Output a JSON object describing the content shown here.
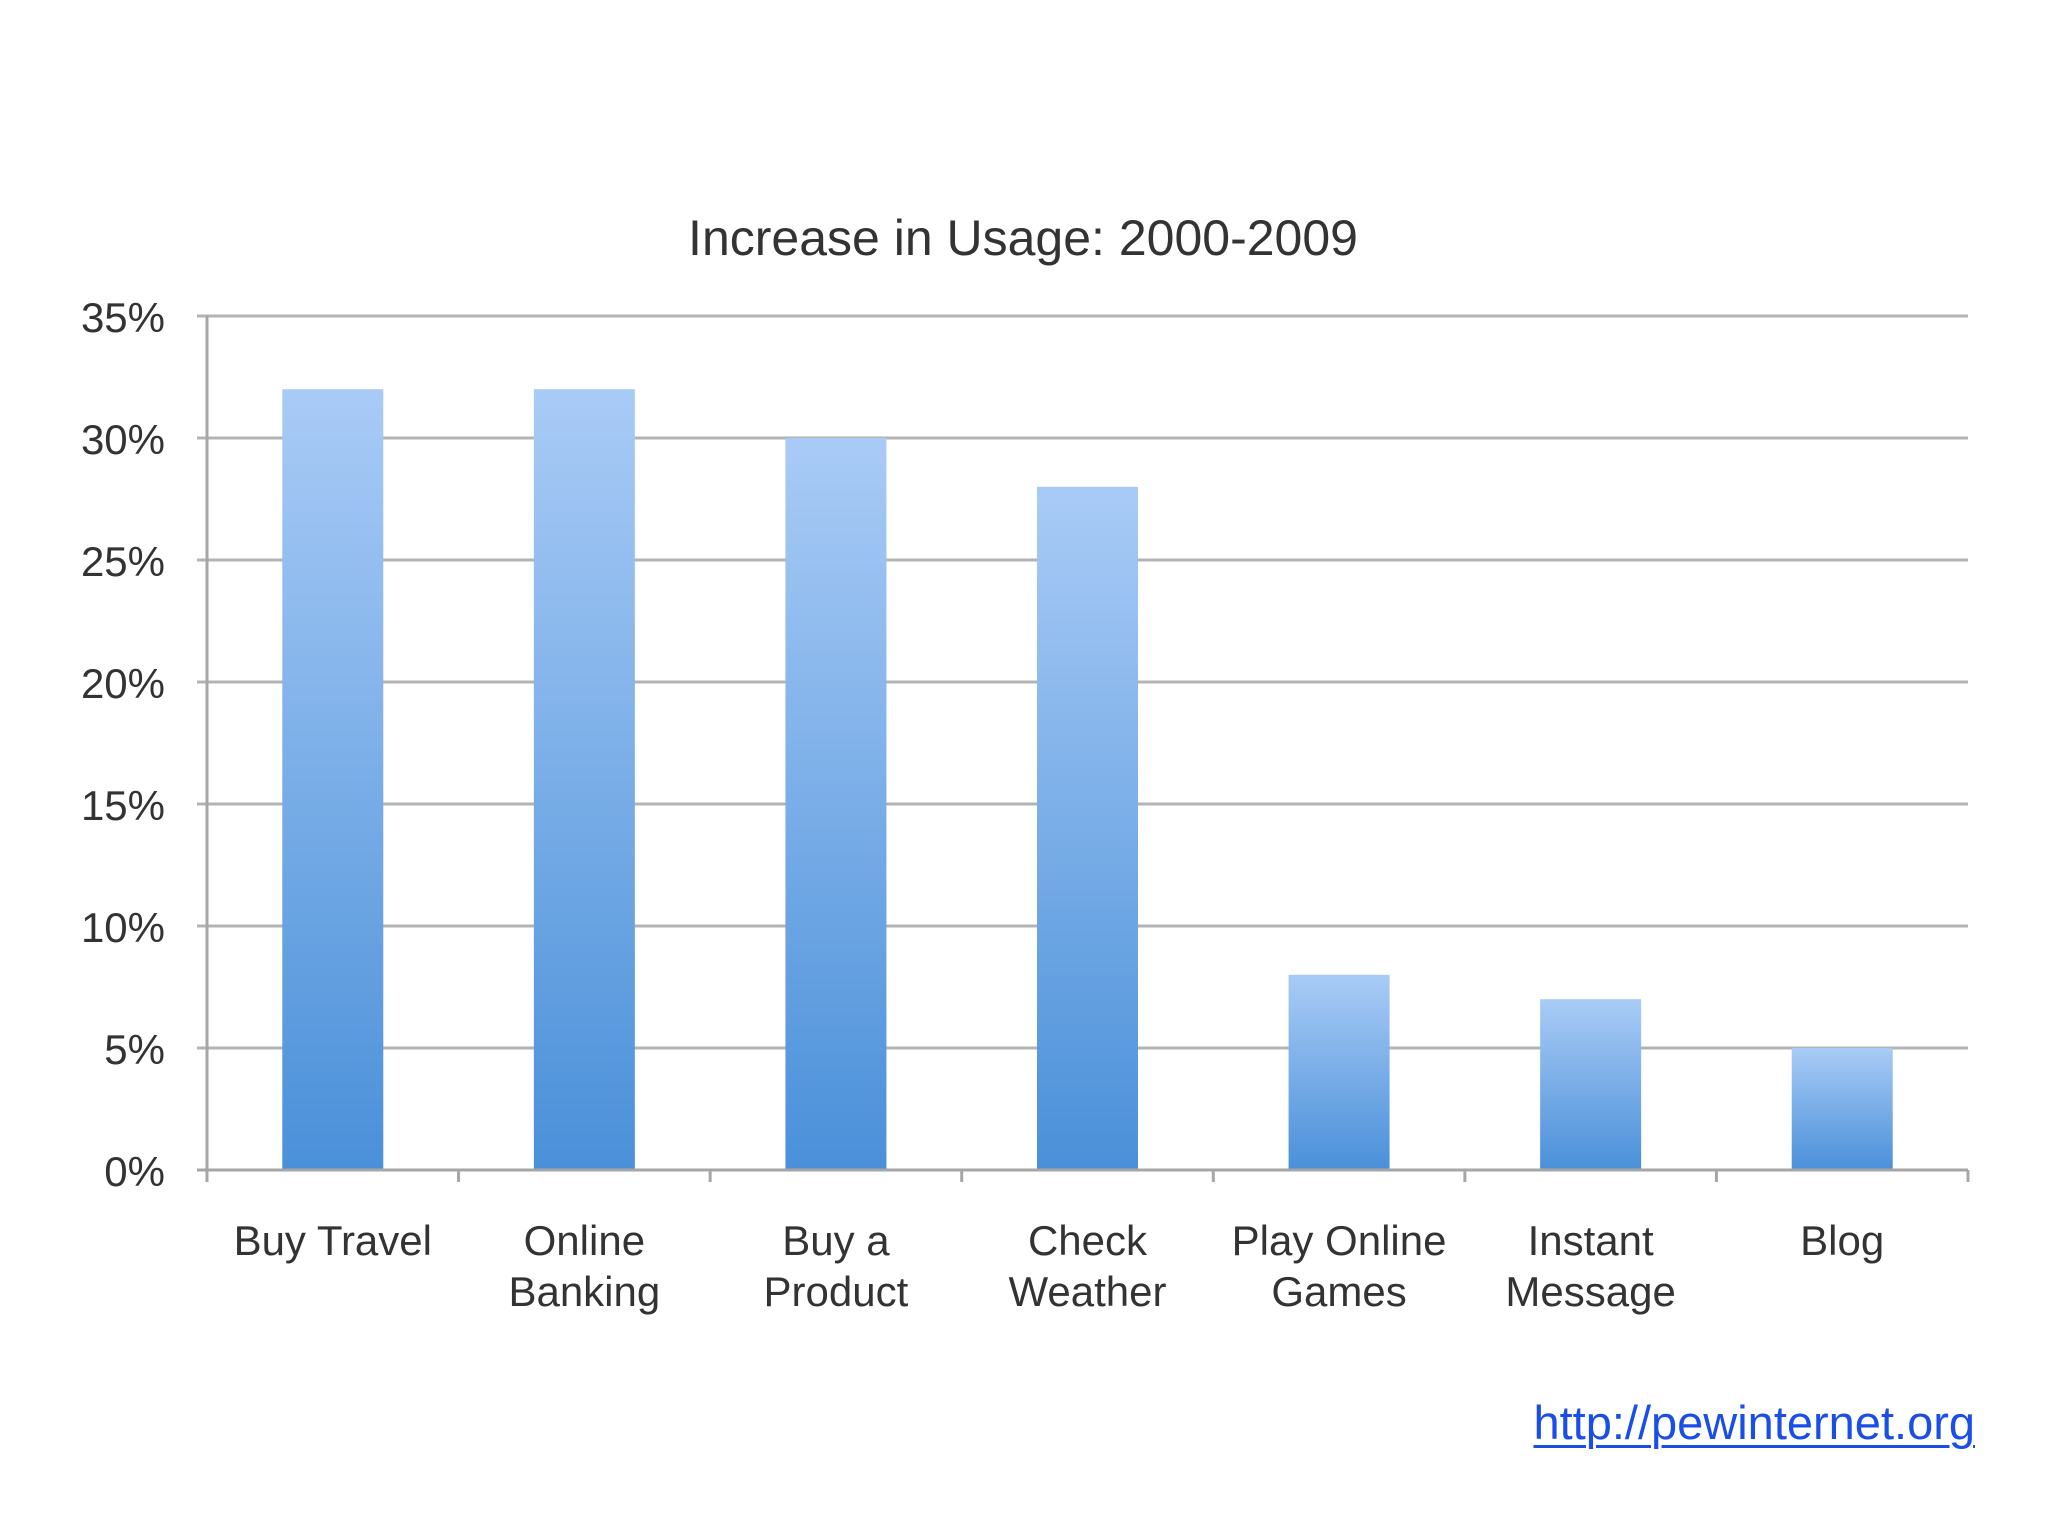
{
  "chart_data": {
    "type": "bar",
    "title": "Increase in Usage: 2000-2009",
    "categories": [
      [
        "Buy Travel"
      ],
      [
        "Online",
        "Banking"
      ],
      [
        "Buy a",
        "Product"
      ],
      [
        "Check",
        "Weather"
      ],
      [
        "Play Online",
        "Games"
      ],
      [
        "Instant",
        "Message"
      ],
      [
        "Blog"
      ]
    ],
    "values": [
      32,
      32,
      30,
      28,
      8,
      7,
      5
    ],
    "ylim": [
      0,
      35
    ],
    "yticks": [
      0,
      5,
      10,
      15,
      20,
      25,
      30,
      35
    ],
    "ytick_labels": [
      "0%",
      "5%",
      "10%",
      "15%",
      "20%",
      "25%",
      "30%",
      "35%"
    ],
    "xlabel": "",
    "ylabel": "",
    "grid": true,
    "legend": "none",
    "colors": {
      "bar_top": "#a9cbf6",
      "bar_bottom": "#4a90d9",
      "grid": "#b3b3b3",
      "axis": "#a6a6a6",
      "text": "#333333"
    }
  },
  "footer": {
    "source_link": "http://pewinternet.org"
  }
}
